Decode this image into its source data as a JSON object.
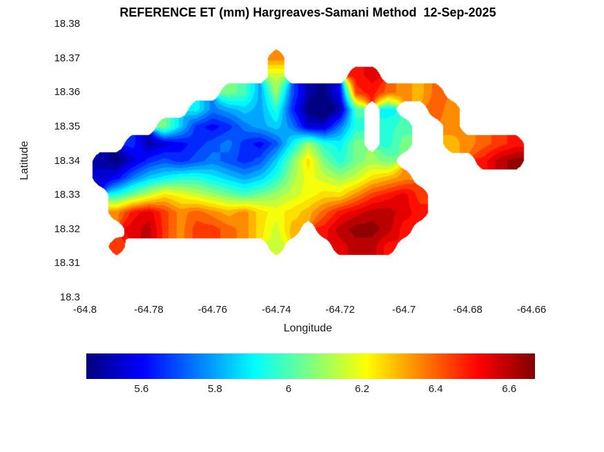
{
  "figure": {
    "title": "REFERENCE ET (mm) Hargreaves-Samani Method  12-Sep-2025",
    "xlabel": "Longitude",
    "ylabel": "Latitude"
  },
  "chart_data": {
    "type": "heatmap",
    "title": "REFERENCE ET (mm) Hargreaves-Samani Method  12-Sep-2025",
    "xlabel": "Longitude",
    "ylabel": "Latitude",
    "xlim": [
      -64.8,
      -64.66
    ],
    "ylim": [
      18.3,
      18.38
    ],
    "x_ticks": [
      -64.8,
      -64.78,
      -64.76,
      -64.74,
      -64.72,
      -64.7,
      -64.68,
      -64.66
    ],
    "x_tick_labels": [
      "-64.8",
      "-64.78",
      "-64.76",
      "-64.74",
      "-64.72",
      "-64.7",
      "-64.68",
      "-64.66"
    ],
    "y_ticks": [
      18.38,
      18.37,
      18.36,
      18.35,
      18.34,
      18.33,
      18.32,
      18.31,
      18.3
    ],
    "y_tick_labels": [
      "18.38",
      "18.37",
      "18.36",
      "18.35",
      "18.34",
      "18.33",
      "18.32",
      "18.31",
      "18.3"
    ],
    "colormap": "jet",
    "clim": [
      5.45,
      6.67
    ],
    "contour_interval": 0.05,
    "colorbar_ticks": [
      5.6,
      5.8,
      6.0,
      6.2,
      6.4,
      6.6
    ],
    "colorbar_tick_labels": [
      "5.6",
      "5.8",
      "6",
      "6.2",
      "6.4",
      "6.6"
    ],
    "grid": {
      "lon_start": -64.8,
      "lon_step": 0.005,
      "lat_start": 18.38,
      "lat_step": -0.005,
      "values": [
        [
          null,
          null,
          null,
          null,
          null,
          null,
          null,
          null,
          null,
          null,
          null,
          null,
          null,
          null,
          null,
          null,
          null,
          null,
          null,
          null,
          null,
          null,
          null,
          null,
          null,
          null,
          null,
          null,
          null
        ],
        [
          null,
          null,
          null,
          null,
          null,
          null,
          null,
          null,
          null,
          null,
          null,
          null,
          null,
          null,
          null,
          null,
          null,
          null,
          null,
          null,
          null,
          null,
          null,
          null,
          null,
          null,
          null,
          null,
          null
        ],
        [
          null,
          null,
          null,
          null,
          null,
          null,
          null,
          null,
          null,
          null,
          null,
          null,
          6.35,
          null,
          null,
          null,
          null,
          null,
          null,
          null,
          null,
          null,
          null,
          null,
          null,
          null,
          null,
          null,
          null
        ],
        [
          null,
          null,
          null,
          null,
          null,
          null,
          null,
          null,
          null,
          null,
          null,
          null,
          6.15,
          null,
          null,
          null,
          null,
          6.5,
          6.55,
          null,
          null,
          null,
          null,
          null,
          null,
          null,
          null,
          null,
          null
        ],
        [
          null,
          null,
          null,
          null,
          null,
          null,
          null,
          null,
          null,
          6.05,
          6.0,
          5.8,
          6.1,
          5.7,
          5.5,
          5.45,
          5.6,
          6.45,
          6.5,
          6.4,
          6.35,
          6.3,
          6.4,
          null,
          null,
          null,
          null,
          null,
          null
        ],
        [
          null,
          null,
          null,
          null,
          null,
          null,
          null,
          5.9,
          5.75,
          5.8,
          5.85,
          5.8,
          5.95,
          5.65,
          5.45,
          5.4,
          5.5,
          6.0,
          null,
          5.9,
          null,
          null,
          6.4,
          6.35,
          null,
          null,
          null,
          null,
          null
        ],
        [
          null,
          null,
          null,
          null,
          null,
          6.05,
          5.85,
          5.65,
          5.6,
          5.65,
          5.75,
          5.8,
          5.85,
          5.75,
          5.55,
          5.55,
          5.75,
          5.95,
          null,
          5.95,
          6.0,
          null,
          null,
          6.35,
          null,
          null,
          null,
          null,
          null
        ],
        [
          null,
          null,
          null,
          5.65,
          5.5,
          5.55,
          5.6,
          5.65,
          5.7,
          5.75,
          5.65,
          5.6,
          5.7,
          5.9,
          6.1,
          5.95,
          5.9,
          6.05,
          null,
          5.95,
          6.05,
          null,
          null,
          6.3,
          6.35,
          6.4,
          6.45,
          6.5,
          null
        ],
        [
          null,
          5.5,
          5.45,
          5.55,
          5.65,
          5.7,
          5.65,
          5.7,
          5.75,
          5.7,
          5.65,
          5.7,
          5.85,
          6.05,
          6.25,
          6.05,
          5.95,
          6.05,
          6.1,
          6.05,
          null,
          null,
          null,
          null,
          null,
          6.5,
          6.6,
          6.65,
          null
        ],
        [
          null,
          5.55,
          5.6,
          5.75,
          5.85,
          5.9,
          5.95,
          5.95,
          5.9,
          5.85,
          5.8,
          5.85,
          5.95,
          6.1,
          6.2,
          6.15,
          6.1,
          6.15,
          6.25,
          6.3,
          6.35,
          null,
          null,
          null,
          null,
          null,
          null,
          null,
          null
        ],
        [
          null,
          null,
          5.95,
          6.05,
          6.15,
          6.25,
          6.2,
          6.15,
          6.1,
          6.05,
          6.0,
          6.05,
          6.1,
          6.15,
          6.2,
          6.25,
          6.25,
          6.35,
          6.45,
          6.5,
          6.55,
          6.45,
          null,
          null,
          null,
          null,
          null,
          null,
          null
        ],
        [
          null,
          null,
          6.35,
          6.5,
          6.55,
          6.45,
          6.35,
          6.4,
          6.35,
          6.3,
          6.35,
          6.25,
          6.2,
          6.25,
          6.3,
          6.4,
          6.5,
          6.55,
          6.6,
          6.6,
          6.55,
          6.5,
          null,
          null,
          null,
          null,
          null,
          null,
          null
        ],
        [
          null,
          null,
          null,
          6.55,
          6.6,
          6.45,
          6.35,
          6.45,
          6.45,
          6.4,
          6.35,
          6.25,
          6.15,
          6.3,
          null,
          6.5,
          6.6,
          6.65,
          6.65,
          6.6,
          6.5,
          null,
          null,
          null,
          null,
          null,
          null,
          null,
          null
        ],
        [
          null,
          null,
          6.45,
          null,
          null,
          null,
          null,
          null,
          null,
          null,
          null,
          null,
          6.15,
          null,
          null,
          null,
          6.55,
          6.6,
          6.6,
          6.5,
          null,
          null,
          null,
          null,
          null,
          null,
          null,
          null,
          null
        ],
        [
          null,
          null,
          null,
          null,
          null,
          null,
          null,
          null,
          null,
          null,
          null,
          null,
          null,
          null,
          null,
          null,
          null,
          null,
          null,
          null,
          null,
          null,
          null,
          null,
          null,
          null,
          null,
          null,
          null
        ],
        [
          null,
          null,
          null,
          null,
          null,
          null,
          null,
          null,
          null,
          null,
          null,
          null,
          null,
          null,
          null,
          null,
          null,
          null,
          null,
          null,
          null,
          null,
          null,
          null,
          null,
          null,
          null,
          null,
          null
        ],
        [
          null,
          null,
          null,
          null,
          null,
          null,
          null,
          null,
          null,
          null,
          null,
          null,
          null,
          null,
          null,
          null,
          null,
          null,
          null,
          null,
          null,
          null,
          null,
          null,
          null,
          null,
          null,
          null,
          null
        ]
      ]
    }
  }
}
